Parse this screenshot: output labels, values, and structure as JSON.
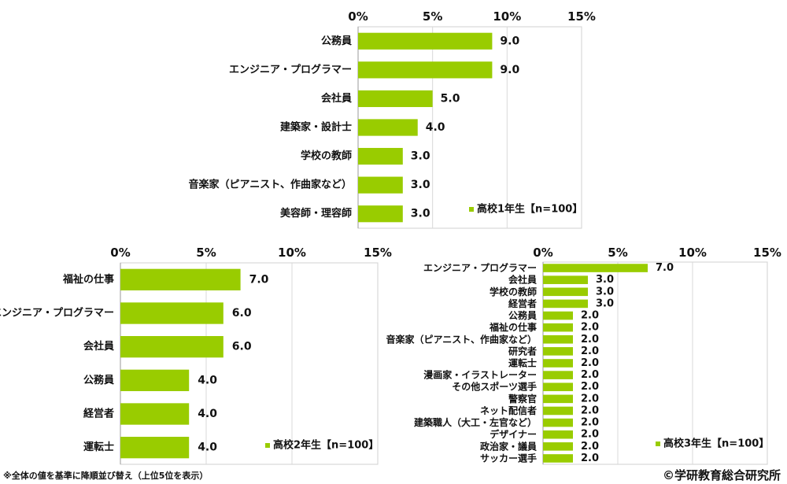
{
  "colors": {
    "bar": "#99cc00",
    "grid": "#d9d9d9",
    "frame": "#d0d0d0"
  },
  "chart_data": [
    {
      "type": "bar",
      "orientation": "horizontal",
      "ticks": [
        "0%",
        "5%",
        "10%",
        "15%"
      ],
      "xlim": [
        0,
        15
      ],
      "categories": [
        "公務員",
        "エンジニア・プログラマー",
        "会社員",
        "建築家・設計士",
        "学校の教師",
        "音楽家（ピアニスト、作曲家など）",
        "美容師・理容師"
      ],
      "values": [
        9.0,
        9.0,
        5.0,
        4.0,
        3.0,
        3.0,
        3.0
      ],
      "value_labels": [
        "9.0",
        "9.0",
        "5.0",
        "4.0",
        "3.0",
        "3.0",
        "3.0"
      ],
      "series_name": "高校1年生【n=100】"
    },
    {
      "type": "bar",
      "orientation": "horizontal",
      "ticks": [
        "0%",
        "5%",
        "10%",
        "15%"
      ],
      "xlim": [
        0,
        15
      ],
      "categories": [
        "福祉の仕事",
        "エンジニア・プログラマー",
        "会社員",
        "公務員",
        "経営者",
        "運転士"
      ],
      "values": [
        7.0,
        6.0,
        6.0,
        4.0,
        4.0,
        4.0
      ],
      "value_labels": [
        "7.0",
        "6.0",
        "6.0",
        "4.0",
        "4.0",
        "4.0"
      ],
      "series_name": "高校2年生【n=100】"
    },
    {
      "type": "bar",
      "orientation": "horizontal",
      "ticks": [
        "0%",
        "5%",
        "10%",
        "15%"
      ],
      "xlim": [
        0,
        15
      ],
      "categories": [
        "エンジニア・プログラマー",
        "会社員",
        "学校の教師",
        "経営者",
        "公務員",
        "福祉の仕事",
        "音楽家（ピアニスト、作曲家など）",
        "研究者",
        "運転士",
        "漫画家・イラストレーター",
        "その他スポーツ選手",
        "警察官",
        "ネット配信者",
        "建築職人（大工・左官など）",
        "デザイナー",
        "政治家・議員",
        "サッカー選手"
      ],
      "values": [
        7.0,
        3.0,
        3.0,
        3.0,
        2.0,
        2.0,
        2.0,
        2.0,
        2.0,
        2.0,
        2.0,
        2.0,
        2.0,
        2.0,
        2.0,
        2.0,
        2.0
      ],
      "value_labels": [
        "7.0",
        "3.0",
        "3.0",
        "3.0",
        "2.0",
        "2.0",
        "2.0",
        "2.0",
        "2.0",
        "2.0",
        "2.0",
        "2.0",
        "2.0",
        "2.0",
        "2.0",
        "2.0",
        "2.0"
      ],
      "series_name": "高校3年生【n=100】"
    }
  ],
  "footnote": "※全体の値を基準に降順並び替え（上位5位を表示）",
  "copyright": "©学研教育総合研究所"
}
